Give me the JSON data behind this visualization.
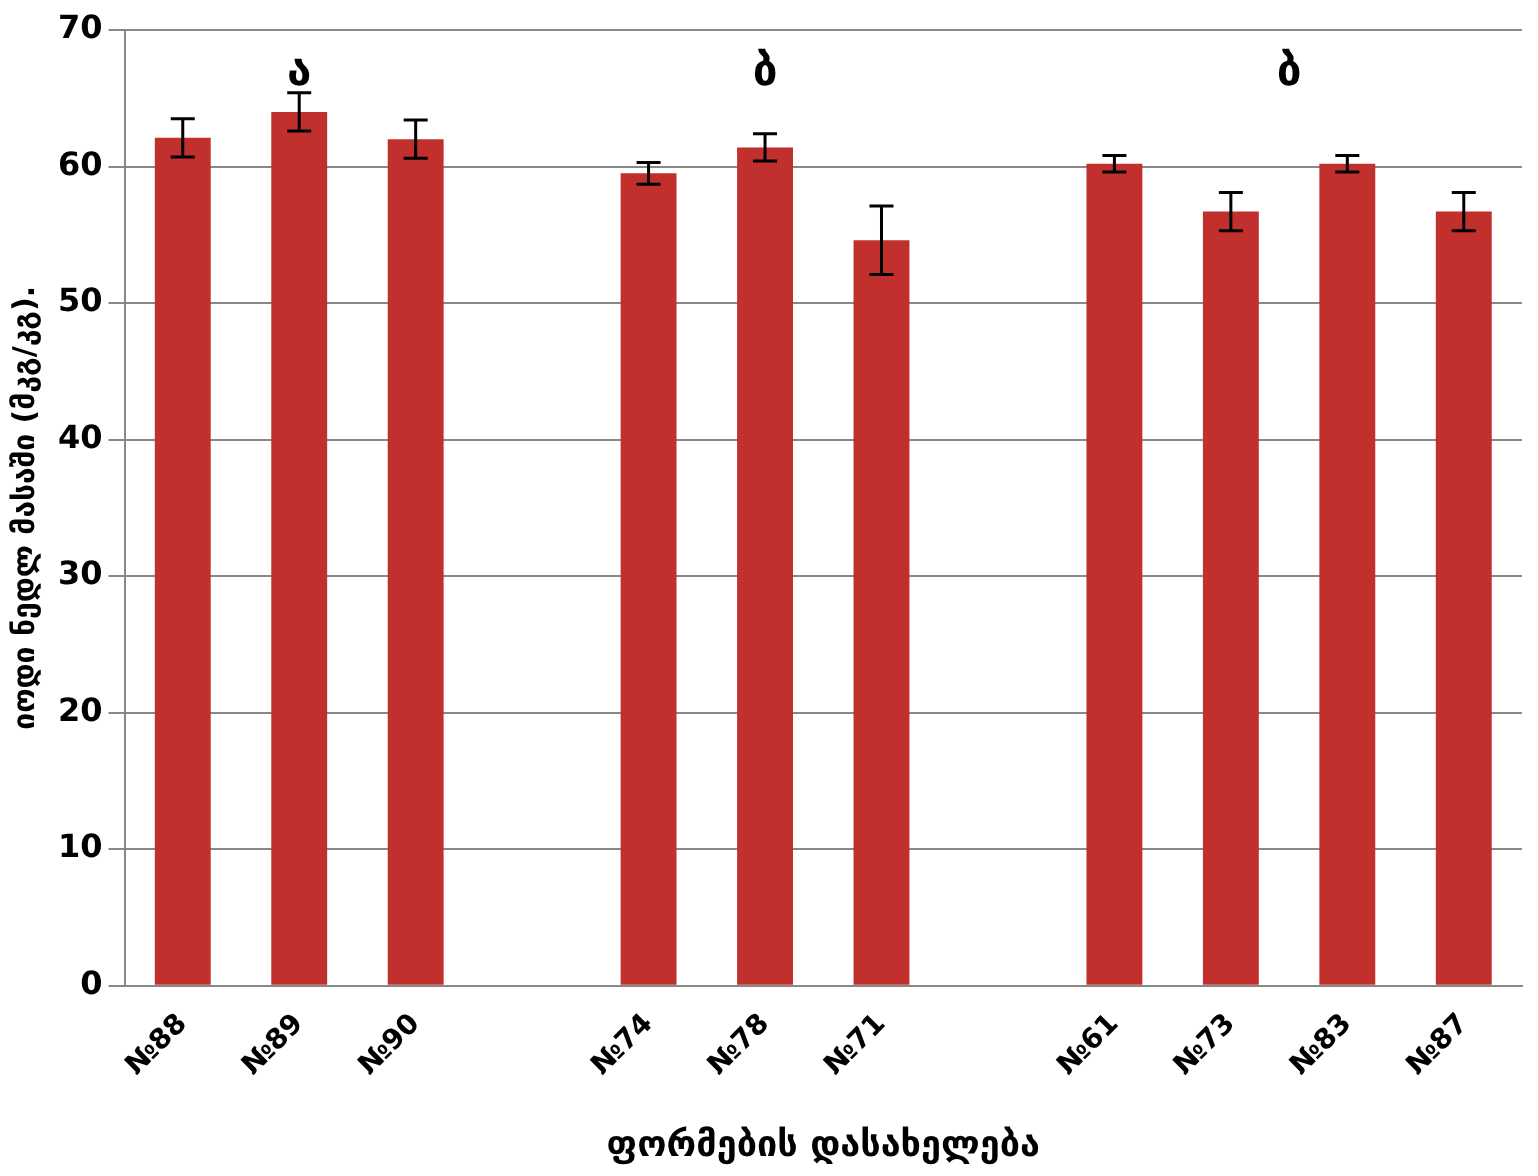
{
  "chart_data": {
    "type": "bar",
    "categories": [
      "№88",
      "№89",
      "№90",
      null,
      "№74",
      "№78",
      "№71",
      null,
      "№61",
      "№73",
      "№83",
      "№87"
    ],
    "values": [
      62.1,
      64.0,
      62.0,
      null,
      59.5,
      61.4,
      54.6,
      null,
      60.2,
      56.7,
      60.2,
      56.7
    ],
    "errors": [
      1.4,
      1.4,
      1.4,
      null,
      0.8,
      1.0,
      2.5,
      null,
      0.6,
      1.4,
      0.6,
      1.4
    ],
    "color": "#c1302c",
    "ylabel": "იოდი ნედლ მასაში (მკგ/კგ).",
    "xlabel": "ფორმების დასახელება",
    "annotations": [
      "ა",
      "ბ",
      "ბ"
    ],
    "ylim": [
      0,
      70
    ],
    "yticks": [
      0,
      10,
      20,
      30,
      40,
      50,
      60,
      70
    ],
    "grid": "y",
    "legend": false
  }
}
